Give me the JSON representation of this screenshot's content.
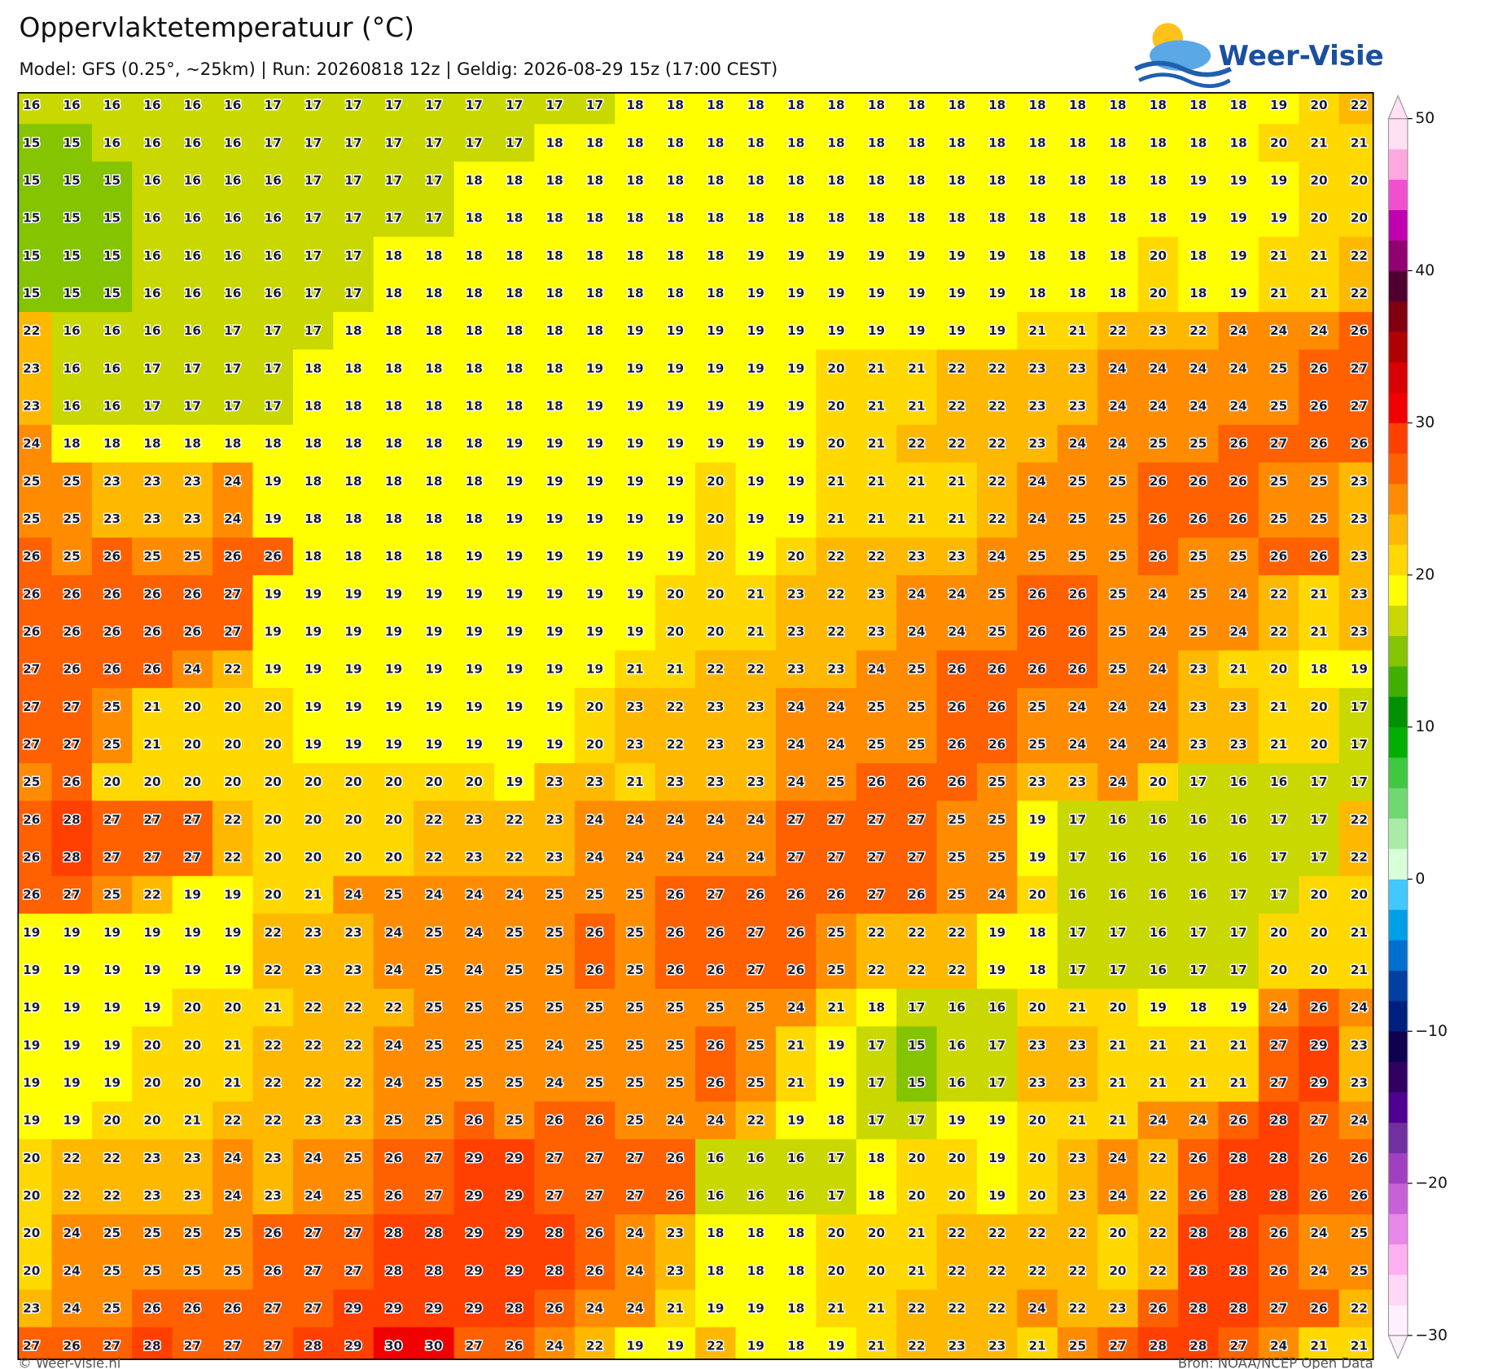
{
  "header": {
    "title": "Oppervlaktetemperatuur (°C)",
    "subtitle": "Model: GFS (0.25°, ~25km)  |  Run: 20260818 12z  |  Geldig: 2026-08-29 15z (17:00 CEST)"
  },
  "logo": "Weer-Visie",
  "map": {
    "rows": [
      [
        16,
        16,
        16,
        16,
        16,
        16,
        17,
        17,
        17,
        17,
        17,
        17,
        17,
        17,
        17,
        18,
        18,
        18,
        18,
        18,
        18,
        18,
        18,
        18,
        18,
        18,
        18,
        18,
        18,
        18,
        18,
        19,
        20,
        22
      ],
      [
        15,
        15,
        16,
        16,
        16,
        16,
        17,
        17,
        17,
        17,
        17,
        17,
        17,
        18,
        18,
        18,
        18,
        18,
        18,
        18,
        18,
        18,
        18,
        18,
        18,
        18,
        18,
        18,
        18,
        18,
        18,
        20,
        21,
        21
      ],
      [
        15,
        15,
        15,
        16,
        16,
        16,
        16,
        17,
        17,
        17,
        17,
        18,
        18,
        18,
        18,
        18,
        18,
        18,
        18,
        18,
        18,
        18,
        18,
        18,
        18,
        18,
        18,
        18,
        18,
        19,
        19,
        19,
        20,
        20
      ],
      [
        15,
        15,
        15,
        16,
        16,
        16,
        16,
        17,
        17,
        17,
        17,
        18,
        18,
        18,
        18,
        18,
        18,
        18,
        18,
        18,
        18,
        18,
        18,
        18,
        18,
        18,
        18,
        18,
        18,
        19,
        19,
        19,
        20,
        20
      ],
      [
        15,
        15,
        15,
        16,
        16,
        16,
        16,
        17,
        17,
        18,
        18,
        18,
        18,
        18,
        18,
        18,
        18,
        18,
        19,
        19,
        19,
        19,
        19,
        19,
        19,
        18,
        18,
        18,
        20,
        18,
        19,
        21,
        21,
        22
      ],
      [
        15,
        15,
        15,
        16,
        16,
        16,
        16,
        17,
        17,
        18,
        18,
        18,
        18,
        18,
        18,
        18,
        18,
        18,
        19,
        19,
        19,
        19,
        19,
        19,
        19,
        18,
        18,
        18,
        20,
        18,
        19,
        21,
        21,
        22
      ],
      [
        22,
        16,
        16,
        16,
        16,
        17,
        17,
        17,
        18,
        18,
        18,
        18,
        18,
        18,
        18,
        19,
        19,
        19,
        19,
        19,
        19,
        19,
        19,
        19,
        19,
        21,
        21,
        22,
        23,
        22,
        24,
        24,
        24,
        26
      ],
      [
        23,
        16,
        16,
        17,
        17,
        17,
        17,
        18,
        18,
        18,
        18,
        18,
        18,
        18,
        19,
        19,
        19,
        19,
        19,
        19,
        20,
        21,
        21,
        22,
        22,
        23,
        23,
        24,
        24,
        24,
        24,
        25,
        26,
        27
      ],
      [
        23,
        16,
        16,
        17,
        17,
        17,
        17,
        18,
        18,
        18,
        18,
        18,
        18,
        18,
        19,
        19,
        19,
        19,
        19,
        19,
        20,
        21,
        21,
        22,
        22,
        23,
        23,
        24,
        24,
        24,
        24,
        25,
        26,
        27
      ],
      [
        24,
        18,
        18,
        18,
        18,
        18,
        18,
        18,
        18,
        18,
        18,
        18,
        19,
        19,
        19,
        19,
        19,
        19,
        19,
        19,
        20,
        21,
        22,
        22,
        22,
        23,
        24,
        24,
        25,
        25,
        26,
        27,
        26,
        26
      ],
      [
        25,
        25,
        23,
        23,
        23,
        24,
        19,
        18,
        18,
        18,
        18,
        18,
        19,
        19,
        19,
        19,
        19,
        20,
        19,
        19,
        21,
        21,
        21,
        21,
        22,
        24,
        25,
        25,
        26,
        26,
        26,
        25,
        25,
        23
      ],
      [
        25,
        25,
        23,
        23,
        23,
        24,
        19,
        18,
        18,
        18,
        18,
        18,
        19,
        19,
        19,
        19,
        19,
        20,
        19,
        19,
        21,
        21,
        21,
        21,
        22,
        24,
        25,
        25,
        26,
        26,
        26,
        25,
        25,
        23
      ],
      [
        26,
        25,
        26,
        25,
        25,
        26,
        26,
        18,
        18,
        18,
        18,
        19,
        19,
        19,
        19,
        19,
        19,
        20,
        19,
        20,
        22,
        22,
        23,
        23,
        24,
        25,
        25,
        25,
        26,
        25,
        25,
        26,
        26,
        23
      ],
      [
        26,
        26,
        26,
        26,
        26,
        27,
        19,
        19,
        19,
        19,
        19,
        19,
        19,
        19,
        19,
        19,
        20,
        20,
        21,
        23,
        22,
        23,
        24,
        24,
        25,
        26,
        26,
        25,
        24,
        25,
        24,
        22,
        21,
        23
      ],
      [
        26,
        26,
        26,
        26,
        26,
        27,
        19,
        19,
        19,
        19,
        19,
        19,
        19,
        19,
        19,
        19,
        20,
        20,
        21,
        23,
        22,
        23,
        24,
        24,
        25,
        26,
        26,
        25,
        24,
        25,
        24,
        22,
        21,
        23
      ],
      [
        27,
        26,
        26,
        26,
        24,
        22,
        19,
        19,
        19,
        19,
        19,
        19,
        19,
        19,
        19,
        21,
        21,
        22,
        22,
        23,
        23,
        24,
        25,
        26,
        26,
        26,
        26,
        25,
        24,
        23,
        21,
        20,
        18,
        19
      ],
      [
        27,
        27,
        25,
        21,
        20,
        20,
        20,
        19,
        19,
        19,
        19,
        19,
        19,
        19,
        20,
        23,
        22,
        23,
        23,
        24,
        24,
        25,
        25,
        26,
        26,
        25,
        24,
        24,
        24,
        23,
        23,
        21,
        20,
        17
      ],
      [
        27,
        27,
        25,
        21,
        20,
        20,
        20,
        19,
        19,
        19,
        19,
        19,
        19,
        19,
        20,
        23,
        22,
        23,
        23,
        24,
        24,
        25,
        25,
        26,
        26,
        25,
        24,
        24,
        24,
        23,
        23,
        21,
        20,
        17
      ],
      [
        25,
        26,
        20,
        20,
        20,
        20,
        20,
        20,
        20,
        20,
        20,
        20,
        19,
        23,
        23,
        21,
        23,
        23,
        23,
        24,
        25,
        26,
        26,
        26,
        25,
        23,
        23,
        24,
        20,
        17,
        16,
        16,
        17,
        17
      ],
      [
        26,
        28,
        27,
        27,
        27,
        22,
        20,
        20,
        20,
        20,
        22,
        23,
        22,
        23,
        24,
        24,
        24,
        24,
        24,
        27,
        27,
        27,
        27,
        25,
        25,
        19,
        17,
        16,
        16,
        16,
        16,
        17,
        17,
        22
      ],
      [
        26,
        28,
        27,
        27,
        27,
        22,
        20,
        20,
        20,
        20,
        22,
        23,
        22,
        23,
        24,
        24,
        24,
        24,
        24,
        27,
        27,
        27,
        27,
        25,
        25,
        19,
        17,
        16,
        16,
        16,
        16,
        17,
        17,
        22
      ],
      [
        26,
        27,
        25,
        22,
        19,
        19,
        20,
        21,
        24,
        25,
        24,
        24,
        24,
        25,
        25,
        25,
        26,
        27,
        26,
        26,
        26,
        27,
        26,
        25,
        24,
        20,
        16,
        16,
        16,
        16,
        17,
        17,
        20,
        20
      ],
      [
        19,
        19,
        19,
        19,
        19,
        19,
        22,
        23,
        23,
        24,
        25,
        24,
        25,
        25,
        26,
        25,
        26,
        26,
        27,
        26,
        25,
        22,
        22,
        22,
        19,
        18,
        17,
        17,
        16,
        17,
        17,
        20,
        20,
        21
      ],
      [
        19,
        19,
        19,
        19,
        19,
        19,
        22,
        23,
        23,
        24,
        25,
        24,
        25,
        25,
        26,
        25,
        26,
        26,
        27,
        26,
        25,
        22,
        22,
        22,
        19,
        18,
        17,
        17,
        16,
        17,
        17,
        20,
        20,
        21
      ],
      [
        19,
        19,
        19,
        19,
        20,
        20,
        21,
        22,
        22,
        22,
        25,
        25,
        25,
        25,
        25,
        25,
        25,
        25,
        25,
        24,
        21,
        18,
        17,
        16,
        16,
        20,
        21,
        20,
        19,
        18,
        19,
        24,
        26,
        24
      ],
      [
        19,
        19,
        19,
        20,
        20,
        21,
        22,
        22,
        22,
        24,
        25,
        25,
        25,
        24,
        25,
        25,
        25,
        26,
        25,
        21,
        19,
        17,
        15,
        16,
        17,
        23,
        23,
        21,
        21,
        21,
        21,
        27,
        29,
        23
      ],
      [
        19,
        19,
        19,
        20,
        20,
        21,
        22,
        22,
        22,
        24,
        25,
        25,
        25,
        24,
        25,
        25,
        25,
        26,
        25,
        21,
        19,
        17,
        15,
        16,
        17,
        23,
        23,
        21,
        21,
        21,
        21,
        27,
        29,
        23
      ],
      [
        19,
        19,
        20,
        20,
        21,
        22,
        22,
        23,
        23,
        25,
        25,
        26,
        25,
        26,
        26,
        25,
        24,
        24,
        22,
        19,
        18,
        17,
        17,
        19,
        19,
        20,
        21,
        21,
        24,
        24,
        26,
        28,
        27,
        24
      ],
      [
        20,
        22,
        22,
        23,
        23,
        24,
        23,
        24,
        25,
        26,
        27,
        29,
        29,
        27,
        27,
        27,
        26,
        16,
        16,
        16,
        17,
        18,
        20,
        20,
        19,
        20,
        23,
        24,
        22,
        26,
        28,
        28,
        26,
        26
      ],
      [
        20,
        22,
        22,
        23,
        23,
        24,
        23,
        24,
        25,
        26,
        27,
        29,
        29,
        27,
        27,
        27,
        26,
        16,
        16,
        16,
        17,
        18,
        20,
        20,
        19,
        20,
        23,
        24,
        22,
        26,
        28,
        28,
        26,
        26
      ],
      [
        20,
        24,
        25,
        25,
        25,
        25,
        26,
        27,
        27,
        28,
        28,
        29,
        29,
        28,
        26,
        24,
        23,
        18,
        18,
        18,
        20,
        20,
        21,
        22,
        22,
        22,
        22,
        20,
        22,
        28,
        28,
        26,
        24,
        25
      ],
      [
        20,
        24,
        25,
        25,
        25,
        25,
        26,
        27,
        27,
        28,
        28,
        29,
        29,
        28,
        26,
        24,
        23,
        18,
        18,
        18,
        20,
        20,
        21,
        22,
        22,
        22,
        22,
        20,
        22,
        28,
        28,
        26,
        24,
        25
      ],
      [
        23,
        24,
        25,
        26,
        26,
        26,
        27,
        27,
        29,
        29,
        29,
        29,
        28,
        26,
        24,
        24,
        21,
        19,
        19,
        18,
        21,
        21,
        22,
        22,
        22,
        24,
        22,
        23,
        26,
        28,
        28,
        27,
        26,
        22
      ],
      [
        27,
        26,
        27,
        28,
        27,
        27,
        27,
        28,
        29,
        30,
        30,
        27,
        26,
        24,
        22,
        19,
        19,
        22,
        19,
        18,
        19,
        21,
        22,
        23,
        23,
        21,
        25,
        27,
        28,
        28,
        27,
        24,
        21,
        21
      ]
    ]
  },
  "colorbar": {
    "ylim": [
      -30,
      50
    ],
    "yticks": [
      50,
      40,
      30,
      20,
      10,
      0,
      {
        "value": -10,
        "label": "−10"
      },
      {
        "value": -20,
        "label": "−20"
      },
      {
        "value": -30,
        "label": "−30"
      }
    ],
    "colors": [
      "#fff0ff",
      "#ffd8f8",
      "#ffb0f0",
      "#e888e8",
      "#c860d8",
      "#a040c0",
      "#7030a0",
      "#500090",
      "#300060",
      "#100050",
      "#002080",
      "#0040a0",
      "#0070d0",
      "#00a0e8",
      "#40c8ff",
      "#d8ffd8",
      "#a8eca8",
      "#70d870",
      "#40c840",
      "#00b000",
      "#009000",
      "#40b000",
      "#84c400",
      "#c8d800",
      "#ffff00",
      "#ffd800",
      "#ffb800",
      "#ff8c00",
      "#ff6000",
      "#ff4000",
      "#f00000",
      "#d80000",
      "#b00000",
      "#800010",
      "#500030",
      "#900070",
      "#c000b0",
      "#f050d0",
      "#ffa8e0",
      "#ffe0f4"
    ]
  },
  "footer": {
    "left": "© Weer-visie.nl",
    "right": "Bron: NOAA/NCEP Open Data"
  }
}
